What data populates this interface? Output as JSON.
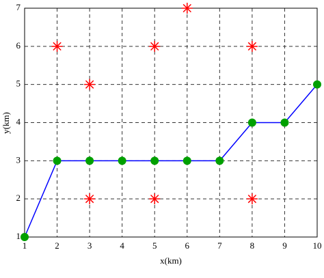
{
  "chart_data": {
    "type": "line",
    "xlabel": "x(km)",
    "ylabel": "y(km)",
    "xlim": [
      1,
      10
    ],
    "ylim": [
      1,
      7
    ],
    "xticks": [
      1,
      2,
      3,
      4,
      5,
      6,
      7,
      8,
      9,
      10
    ],
    "yticks": [
      1,
      2,
      3,
      4,
      5,
      6,
      7
    ],
    "grid": true,
    "series": [
      {
        "type": "line",
        "color": "#0000ff",
        "marker_color": "#00a000",
        "x": [
          1,
          2,
          3,
          4,
          5,
          6,
          7,
          8,
          9,
          10
        ],
        "values": [
          1,
          3,
          3,
          3,
          3,
          3,
          3,
          4,
          4,
          5
        ]
      },
      {
        "type": "scatter",
        "color": "#ff0000",
        "x": [
          2,
          3,
          5,
          6,
          8,
          3,
          5,
          8
        ],
        "values": [
          6,
          5,
          6,
          7,
          6,
          2,
          2,
          2
        ]
      }
    ]
  }
}
